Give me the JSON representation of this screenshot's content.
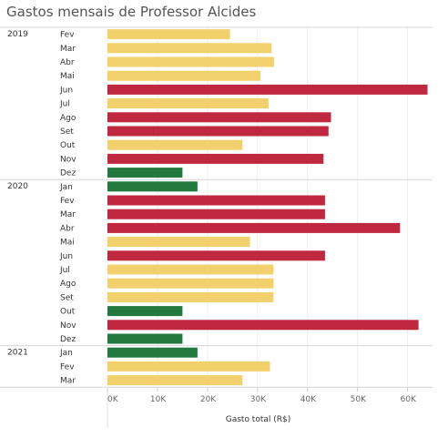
{
  "chart_data": {
    "type": "bar",
    "orientation": "horizontal",
    "title": "Gastos mensais de Professor Alcides",
    "xlabel": "Gasto total (R$)",
    "ylabel": "",
    "xlim": [
      0,
      65000
    ],
    "x_ticks": [
      0,
      10000,
      20000,
      30000,
      40000,
      50000,
      60000
    ],
    "x_tick_labels": [
      "0K",
      "10K",
      "20K",
      "30K",
      "40K",
      "50K",
      "60K"
    ],
    "colors": {
      "yellow": "#F2D06B",
      "red": "#C0283F",
      "green": "#247A3E"
    },
    "groups": [
      {
        "year": "2019",
        "bars": [
          {
            "month": "Fev",
            "value": 24500,
            "color": "yellow"
          },
          {
            "month": "Mar",
            "value": 32800,
            "color": "yellow"
          },
          {
            "month": "Abr",
            "value": 33300,
            "color": "yellow"
          },
          {
            "month": "Mai",
            "value": 30600,
            "color": "yellow"
          },
          {
            "month": "Jun",
            "value": 64000,
            "color": "red"
          },
          {
            "month": "Jul",
            "value": 32200,
            "color": "yellow"
          },
          {
            "month": "Ago",
            "value": 44700,
            "color": "red"
          },
          {
            "month": "Set",
            "value": 44200,
            "color": "red"
          },
          {
            "month": "Out",
            "value": 27000,
            "color": "yellow"
          },
          {
            "month": "Nov",
            "value": 43200,
            "color": "red"
          },
          {
            "month": "Dez",
            "value": 15000,
            "color": "green"
          }
        ]
      },
      {
        "year": "2020",
        "bars": [
          {
            "month": "Jan",
            "value": 18000,
            "color": "green"
          },
          {
            "month": "Fev",
            "value": 43500,
            "color": "red"
          },
          {
            "month": "Mar",
            "value": 43500,
            "color": "red"
          },
          {
            "month": "Abr",
            "value": 58500,
            "color": "red"
          },
          {
            "month": "Mai",
            "value": 28500,
            "color": "yellow"
          },
          {
            "month": "Jun",
            "value": 43500,
            "color": "red"
          },
          {
            "month": "Jul",
            "value": 33200,
            "color": "yellow"
          },
          {
            "month": "Ago",
            "value": 33200,
            "color": "yellow"
          },
          {
            "month": "Set",
            "value": 33200,
            "color": "yellow"
          },
          {
            "month": "Out",
            "value": 15000,
            "color": "green"
          },
          {
            "month": "Nov",
            "value": 62200,
            "color": "red"
          },
          {
            "month": "Dez",
            "value": 15000,
            "color": "green"
          }
        ]
      },
      {
        "year": "2021",
        "bars": [
          {
            "month": "Jan",
            "value": 18000,
            "color": "green"
          },
          {
            "month": "Fev",
            "value": 32500,
            "color": "yellow"
          },
          {
            "month": "Mar",
            "value": 27000,
            "color": "yellow"
          }
        ]
      }
    ]
  }
}
